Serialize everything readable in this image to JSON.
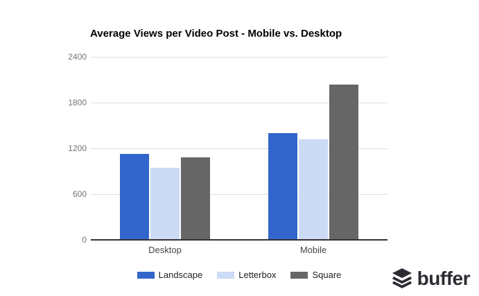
{
  "title": "Average Views per Video Post - Mobile vs. Desktop",
  "chart_data": {
    "type": "bar",
    "title": "Average Views per Video Post - Mobile vs. Desktop",
    "categories": [
      "Desktop",
      "Mobile"
    ],
    "series": [
      {
        "name": "Landscape",
        "color": "#3366cc",
        "values": [
          1130,
          1400
        ]
      },
      {
        "name": "Letterbox",
        "color": "#cbdaf5",
        "values": [
          950,
          1320
        ]
      },
      {
        "name": "Square",
        "color": "#666666",
        "values": [
          1080,
          2040
        ]
      }
    ],
    "xlabel": "",
    "ylabel": "",
    "ylim": [
      0,
      2400
    ],
    "yticks": [
      0,
      600,
      1200,
      1800,
      2400
    ],
    "grid": true,
    "legend_position": "bottom"
  },
  "colors": {
    "gridline": "#dddddd",
    "axis_line": "#333333",
    "ytick_text": "#757575",
    "xlabel_text": "#444444",
    "brand_text": "#2b2d33"
  },
  "branding": {
    "logo_text": "buffer",
    "logo_icon": "buffer-stack-icon"
  }
}
